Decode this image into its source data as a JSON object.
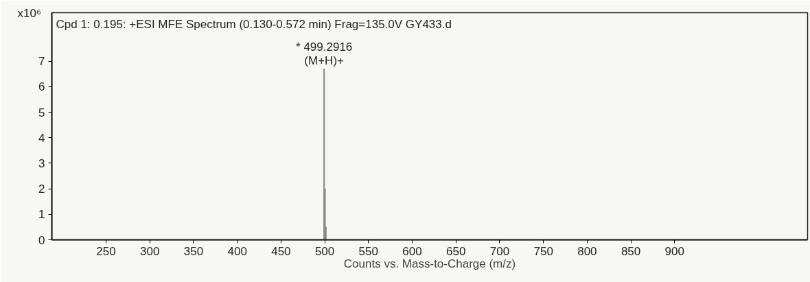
{
  "chart_data": {
    "type": "bar",
    "title": "Cpd 1: 0.195: +ESI MFE Spectrum (0.130-0.572 min) Frag=135.0V GY433.d",
    "xlabel": "Counts vs. Mass-to-Charge (m/z)",
    "ylabel": "x10⁶",
    "x": [
      499.2916,
      500.3,
      501.3
    ],
    "series": [
      {
        "color": "#8a8a8a",
        "values": [
          6.7,
          2.0,
          0.5
        ]
      }
    ],
    "xlim": [
      188,
      1052
    ],
    "ylim": [
      0,
      8.9
    ],
    "xticks": [
      250,
      300,
      350,
      400,
      450,
      500,
      550,
      600,
      650,
      700,
      750,
      800,
      850,
      900
    ],
    "yticks": [
      0,
      1,
      2,
      3,
      4,
      5,
      6,
      7
    ],
    "annotations": [
      {
        "text": "* 499.2916",
        "x": 499.2916,
        "y": 6.7
      },
      {
        "text": "(M+H)+",
        "x": 499.2916,
        "y": 6.7
      }
    ],
    "grid": false
  }
}
